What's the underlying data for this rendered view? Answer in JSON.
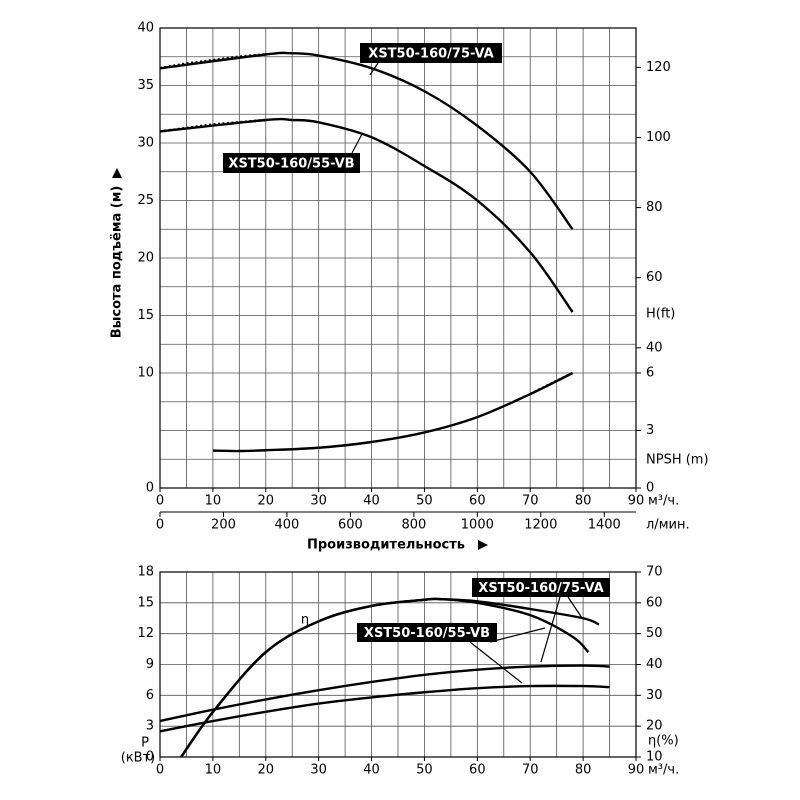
{
  "chart_data": [
    {
      "type": "line",
      "ylabel": "Высота подъёма (м)",
      "xlabel": "Производительность",
      "xunit": "м³/ч.",
      "x2unit": "л/мин.",
      "y2label": "H(ft)",
      "y3label": "NPSH (m)",
      "xlim": [
        0,
        90
      ],
      "xticks": [
        0,
        10,
        20,
        30,
        40,
        50,
        60,
        70,
        80,
        90
      ],
      "x2lim": [
        0,
        1500
      ],
      "x2ticks": [
        0,
        200,
        400,
        600,
        800,
        1000,
        1200,
        1400
      ],
      "ylim": [
        0,
        40
      ],
      "yticks": [
        0,
        10,
        15,
        20,
        25,
        30,
        35,
        40
      ],
      "y2lim": [
        0,
        131.23
      ],
      "y2ticks": [
        40,
        60,
        80,
        100,
        120
      ],
      "y3lim": [
        0,
        24
      ],
      "y3ticks": [
        0,
        3,
        6
      ],
      "xgrid": [
        0,
        5,
        10,
        15,
        20,
        25,
        30,
        35,
        40,
        45,
        50,
        55,
        60,
        65,
        70,
        75,
        80,
        85,
        90
      ],
      "ygrid": [
        0,
        2.5,
        5,
        7.5,
        10,
        12.5,
        15,
        17.5,
        20,
        22.5,
        25,
        27.5,
        30,
        32.5,
        35,
        37.5,
        40
      ],
      "series": [
        {
          "name": "XST50-160/75-VA",
          "color": "#000000",
          "dotted_range": [
            0,
            20
          ],
          "x": [
            0,
            5,
            10,
            15,
            20,
            25,
            30,
            40,
            50,
            60,
            70,
            78
          ],
          "values": [
            36.5,
            36.9,
            37.2,
            37.5,
            37.7,
            37.8,
            37.6,
            36.5,
            34.5,
            31.5,
            27.5,
            22.5
          ]
        },
        {
          "name": "XST50-160/55-VB",
          "color": "#000000",
          "dotted_range": [
            0,
            20
          ],
          "x": [
            0,
            5,
            10,
            15,
            20,
            25,
            30,
            40,
            50,
            60,
            70,
            78
          ],
          "values": [
            31,
            31.3,
            31.6,
            31.8,
            32,
            32,
            31.8,
            30.5,
            28,
            25,
            20.5,
            15.3
          ]
        },
        {
          "color": "#000000",
          "axis": "y3",
          "dotted_range": [
            70,
            78
          ],
          "x": [
            10,
            15,
            20,
            30,
            40,
            50,
            60,
            70,
            78
          ],
          "values": [
            1.95,
            1.93,
            1.97,
            2.1,
            2.4,
            2.9,
            3.7,
            4.9,
            6
          ]
        }
      ]
    },
    {
      "type": "line",
      "ylabel": "P",
      "yunit": "(кВт)",
      "y2label": "η(%)",
      "xunit": "м³/ч.",
      "xlim": [
        0,
        90
      ],
      "xticks": [
        0,
        10,
        20,
        30,
        40,
        50,
        60,
        70,
        80,
        90
      ],
      "ylim": [
        0,
        18
      ],
      "yticks": [
        0,
        3,
        6,
        9,
        12,
        15,
        18
      ],
      "y2lim": [
        10,
        70
      ],
      "y2ticks": [
        10,
        20,
        30,
        40,
        50,
        60,
        70
      ],
      "xgrid": [
        0,
        5,
        10,
        15,
        20,
        25,
        30,
        35,
        40,
        45,
        50,
        55,
        60,
        65,
        70,
        75,
        80,
        85,
        90
      ],
      "annotations": [
        {
          "text": "η"
        }
      ],
      "series": [
        {
          "name": "XST50-160/75-VA",
          "color": "#000000",
          "x": [
            0,
            10,
            20,
            30,
            40,
            50,
            60,
            70,
            80,
            85
          ],
          "values": [
            3.5,
            4.6,
            5.6,
            6.5,
            7.3,
            8.0,
            8.5,
            8.8,
            8.9,
            8.8
          ]
        },
        {
          "name": "XST50-160/55-VB",
          "color": "#000000",
          "x": [
            0,
            10,
            20,
            30,
            40,
            50,
            60,
            70,
            80,
            85
          ],
          "values": [
            2.5,
            3.5,
            4.4,
            5.2,
            5.8,
            6.3,
            6.7,
            6.9,
            6.9,
            6.8
          ]
        },
        {
          "color": "#000000",
          "axis": "y2",
          "x": [
            4,
            10,
            20,
            30,
            40,
            50,
            53,
            60,
            70,
            80,
            83
          ],
          "values": [
            10,
            24.6,
            44,
            54,
            59,
            61,
            61.2,
            60.5,
            58,
            55,
            53
          ]
        },
        {
          "color": "#000000",
          "axis": "y2",
          "x": [
            4,
            10,
            20,
            30,
            40,
            50,
            53,
            60,
            70,
            78,
            81
          ],
          "values": [
            10,
            24.6,
            44,
            54,
            59,
            61,
            61.2,
            60,
            56,
            49,
            44
          ]
        }
      ]
    }
  ]
}
